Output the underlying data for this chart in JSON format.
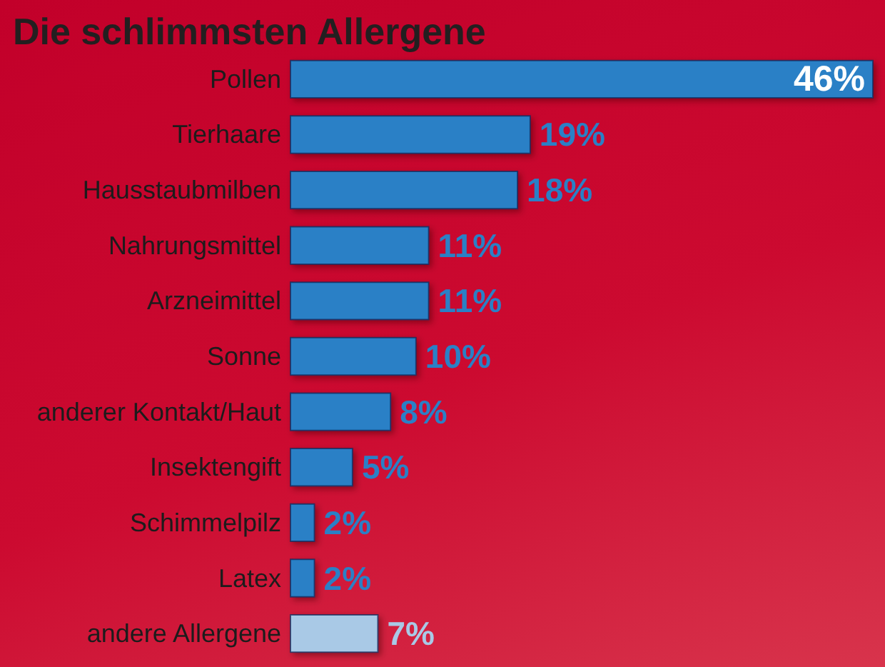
{
  "chart_data": {
    "type": "bar",
    "orientation": "horizontal",
    "title": "Die schlimmsten Allergene",
    "categories": [
      "Pollen",
      "Tierhaare",
      "Hausstaubmilben",
      "Nahrungsmittel",
      "Arzneimittel",
      "Sonne",
      "anderer Kontakt/Haut",
      "Insektengift",
      "Schimmelpilz",
      "Latex",
      "andere Allergene"
    ],
    "values": [
      46,
      19,
      18,
      11,
      11,
      10,
      8,
      5,
      2,
      2,
      7
    ],
    "colors": [
      "#2a80c6",
      "#2a80c6",
      "#2a80c6",
      "#2a80c6",
      "#2a80c6",
      "#2a80c6",
      "#2a80c6",
      "#2a80c6",
      "#2a80c6",
      "#2a80c6",
      "#a9c9e6"
    ],
    "value_labels": [
      "46%",
      "19%",
      "18%",
      "11%",
      "11%",
      "10%",
      "8%",
      "5%",
      "2%",
      "2%",
      "7%"
    ]
  }
}
